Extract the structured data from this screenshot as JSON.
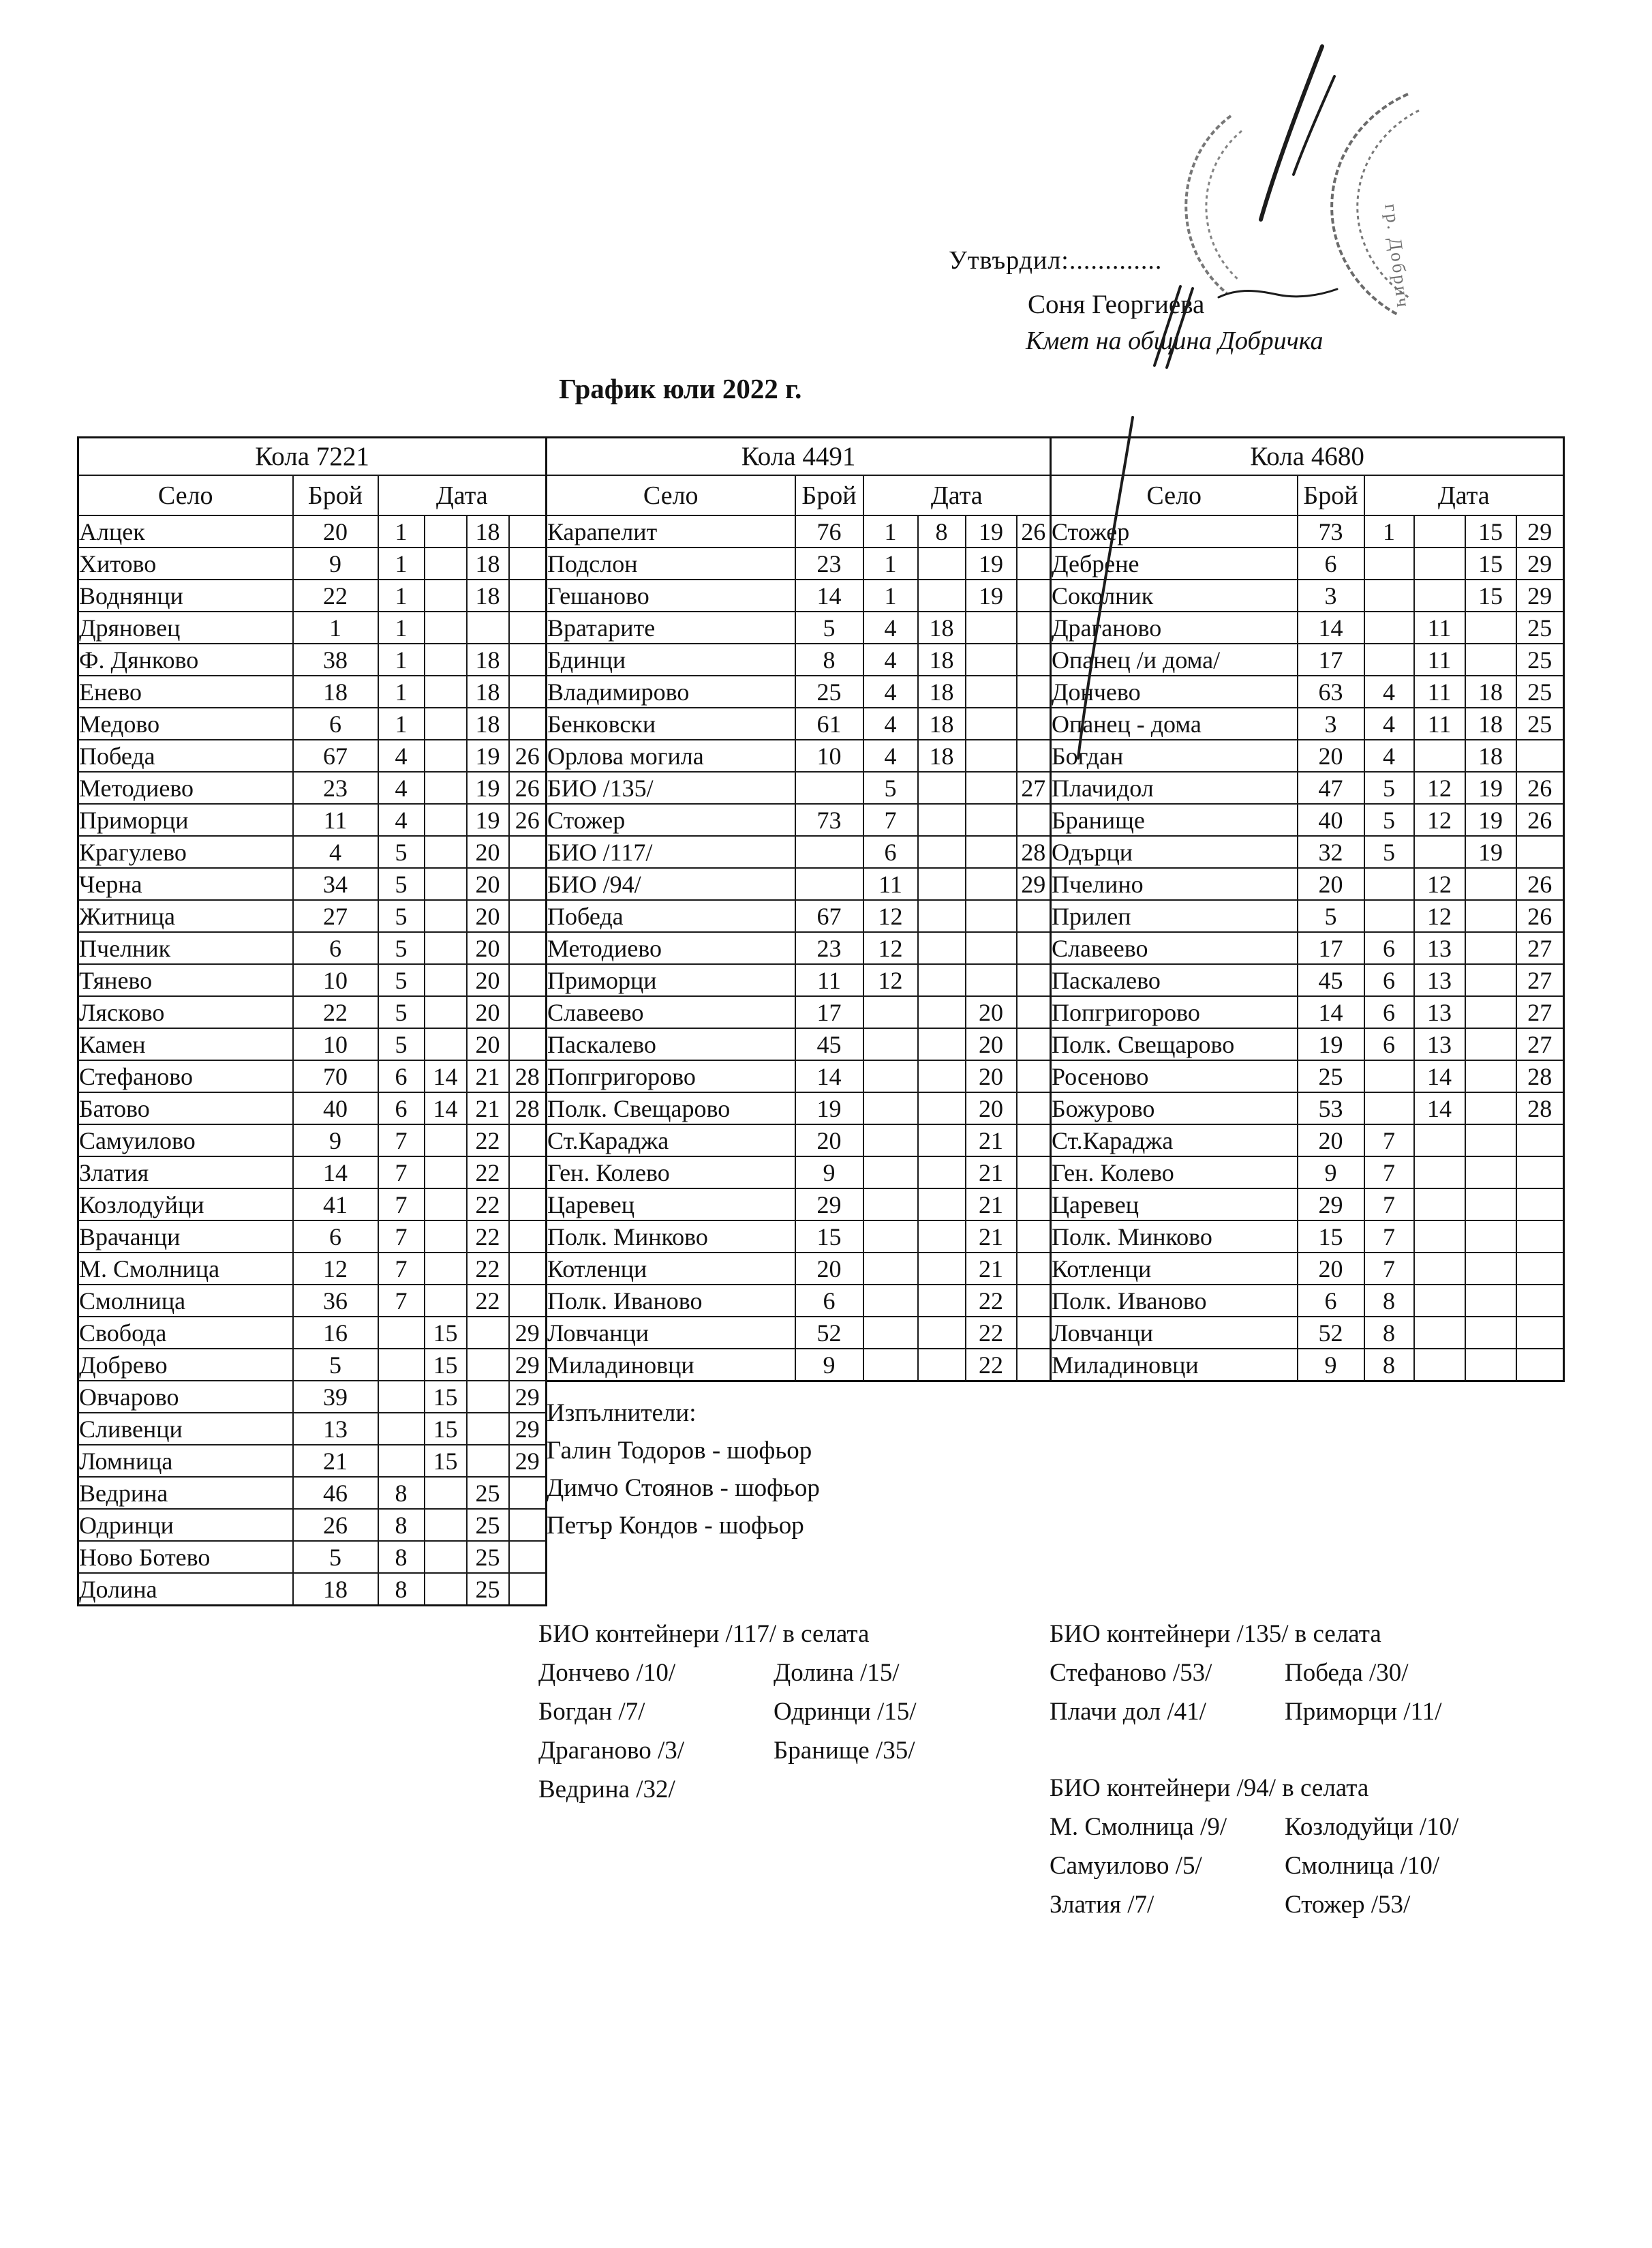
{
  "header": {
    "approved_label": "Утвърдил:.............",
    "approver_name": "Соня Георгиева",
    "approver_title": "Кмет  на община Добричка",
    "title": "График юли 2022 г."
  },
  "columns": {
    "village": "Село",
    "count": "Брой",
    "date": "Дата"
  },
  "stamp": {
    "right_stamp_text": "гр. Добрич"
  },
  "tables": [
    {
      "car": "Кола 7221",
      "rows": [
        {
          "village": "Алцек",
          "count": "20",
          "dates": [
            "1",
            "",
            "18",
            ""
          ]
        },
        {
          "village": "Хитово",
          "count": "9",
          "dates": [
            "1",
            "",
            "18",
            ""
          ]
        },
        {
          "village": "Воднянци",
          "count": "22",
          "dates": [
            "1",
            "",
            "18",
            ""
          ]
        },
        {
          "village": "Дряновец",
          "count": "1",
          "dates": [
            "1",
            "",
            "",
            ""
          ]
        },
        {
          "village": "Ф. Дянково",
          "count": "38",
          "dates": [
            "1",
            "",
            "18",
            ""
          ]
        },
        {
          "village": "Енево",
          "count": "18",
          "dates": [
            "1",
            "",
            "18",
            ""
          ]
        },
        {
          "village": "Медово",
          "count": "6",
          "dates": [
            "1",
            "",
            "18",
            ""
          ]
        },
        {
          "village": "Победа",
          "count": "67",
          "dates": [
            "4",
            "",
            "19",
            "26"
          ]
        },
        {
          "village": "Методиево",
          "count": "23",
          "dates": [
            "4",
            "",
            "19",
            "26"
          ]
        },
        {
          "village": "Приморци",
          "count": "11",
          "dates": [
            "4",
            "",
            "19",
            "26"
          ]
        },
        {
          "village": "Крагулево",
          "count": "4",
          "dates": [
            "5",
            "",
            "20",
            ""
          ]
        },
        {
          "village": "Черна",
          "count": "34",
          "dates": [
            "5",
            "",
            "20",
            ""
          ]
        },
        {
          "village": "Житница",
          "count": "27",
          "dates": [
            "5",
            "",
            "20",
            ""
          ]
        },
        {
          "village": "Пчелник",
          "count": "6",
          "dates": [
            "5",
            "",
            "20",
            ""
          ]
        },
        {
          "village": "Тянево",
          "count": "10",
          "dates": [
            "5",
            "",
            "20",
            ""
          ]
        },
        {
          "village": "Лясково",
          "count": "22",
          "dates": [
            "5",
            "",
            "20",
            ""
          ]
        },
        {
          "village": "Камен",
          "count": "10",
          "dates": [
            "5",
            "",
            "20",
            ""
          ]
        },
        {
          "village": "Стефаново",
          "count": "70",
          "dates": [
            "6",
            "14",
            "21",
            "28"
          ]
        },
        {
          "village": "Батово",
          "count": "40",
          "dates": [
            "6",
            "14",
            "21",
            "28"
          ]
        },
        {
          "village": "Самуилово",
          "count": "9",
          "dates": [
            "7",
            "",
            "22",
            ""
          ]
        },
        {
          "village": "Златия",
          "count": "14",
          "dates": [
            "7",
            "",
            "22",
            ""
          ]
        },
        {
          "village": "Козлодуйци",
          "count": "41",
          "dates": [
            "7",
            "",
            "22",
            ""
          ]
        },
        {
          "village": "Врачанци",
          "count": "6",
          "dates": [
            "7",
            "",
            "22",
            ""
          ]
        },
        {
          "village": "М. Смолница",
          "count": "12",
          "dates": [
            "7",
            "",
            "22",
            ""
          ]
        },
        {
          "village": "Смолница",
          "count": "36",
          "dates": [
            "7",
            "",
            "22",
            ""
          ]
        },
        {
          "village": "Свобода",
          "count": "16",
          "dates": [
            "",
            "15",
            "",
            "29"
          ]
        },
        {
          "village": "Добрево",
          "count": "5",
          "dates": [
            "",
            "15",
            "",
            "29"
          ]
        },
        {
          "village": "Овчарово",
          "count": "39",
          "dates": [
            "",
            "15",
            "",
            "29"
          ]
        },
        {
          "village": "Сливенци",
          "count": "13",
          "dates": [
            "",
            "15",
            "",
            "29"
          ]
        },
        {
          "village": "Ломница",
          "count": "21",
          "dates": [
            "",
            "15",
            "",
            "29"
          ]
        },
        {
          "village": "Ведрина",
          "count": "46",
          "dates": [
            "8",
            "",
            "25",
            ""
          ]
        },
        {
          "village": "Одринци",
          "count": "26",
          "dates": [
            "8",
            "",
            "25",
            ""
          ]
        },
        {
          "village": "Ново Ботево",
          "count": "5",
          "dates": [
            "8",
            "",
            "25",
            ""
          ]
        },
        {
          "village": "Долина",
          "count": "18",
          "dates": [
            "8",
            "",
            "25",
            ""
          ]
        }
      ]
    },
    {
      "car": "Кола 4491",
      "rows": [
        {
          "village": "Карапелит",
          "count": "76",
          "dates": [
            "1",
            "8",
            "19",
            "26"
          ]
        },
        {
          "village": "Подслон",
          "count": "23",
          "dates": [
            "1",
            "",
            "19",
            ""
          ]
        },
        {
          "village": "Гешаново",
          "count": "14",
          "dates": [
            "1",
            "",
            "19",
            ""
          ]
        },
        {
          "village": "Вратарите",
          "count": "5",
          "dates": [
            "4",
            "18",
            "",
            ""
          ]
        },
        {
          "village": "Бдинци",
          "count": "8",
          "dates": [
            "4",
            "18",
            "",
            ""
          ]
        },
        {
          "village": "Владимирово",
          "count": "25",
          "dates": [
            "4",
            "18",
            "",
            ""
          ]
        },
        {
          "village": "Бенковски",
          "count": "61",
          "dates": [
            "4",
            "18",
            "",
            ""
          ]
        },
        {
          "village": "Орлова могила",
          "count": "10",
          "dates": [
            "4",
            "18",
            "",
            ""
          ]
        },
        {
          "village": "БИО /135/",
          "count": "",
          "dates": [
            "5",
            "",
            "",
            "27"
          ]
        },
        {
          "village": "Стожер",
          "count": "73",
          "dates": [
            "7",
            "",
            "",
            ""
          ]
        },
        {
          "village": "БИО /117/",
          "count": "",
          "dates": [
            "6",
            "",
            "",
            "28"
          ]
        },
        {
          "village": "БИО /94/",
          "count": "",
          "dates": [
            "11",
            "",
            "",
            "29"
          ]
        },
        {
          "village": "Победа",
          "count": "67",
          "dates": [
            "12",
            "",
            "",
            ""
          ]
        },
        {
          "village": "Методиево",
          "count": "23",
          "dates": [
            "12",
            "",
            "",
            ""
          ]
        },
        {
          "village": "Приморци",
          "count": "11",
          "dates": [
            "12",
            "",
            "",
            ""
          ]
        },
        {
          "village": "Славеево",
          "count": "17",
          "dates": [
            "",
            "",
            "20",
            ""
          ]
        },
        {
          "village": "Паскалево",
          "count": "45",
          "dates": [
            "",
            "",
            "20",
            ""
          ]
        },
        {
          "village": "Попгригорово",
          "count": "14",
          "dates": [
            "",
            "",
            "20",
            ""
          ]
        },
        {
          "village": "Полк. Свещарово",
          "count": "19",
          "dates": [
            "",
            "",
            "20",
            ""
          ]
        },
        {
          "village": "Ст.Караджа",
          "count": "20",
          "dates": [
            "",
            "",
            "21",
            ""
          ]
        },
        {
          "village": "Ген. Колево",
          "count": "9",
          "dates": [
            "",
            "",
            "21",
            ""
          ]
        },
        {
          "village": "Царевец",
          "count": "29",
          "dates": [
            "",
            "",
            "21",
            ""
          ]
        },
        {
          "village": "Полк. Минково",
          "count": "15",
          "dates": [
            "",
            "",
            "21",
            ""
          ]
        },
        {
          "village": "Котленци",
          "count": "20",
          "dates": [
            "",
            "",
            "21",
            ""
          ]
        },
        {
          "village": "Полк. Иваново",
          "count": "6",
          "dates": [
            "",
            "",
            "22",
            ""
          ]
        },
        {
          "village": "Ловчанци",
          "count": "52",
          "dates": [
            "",
            "",
            "22",
            ""
          ]
        },
        {
          "village": "Миладиновци",
          "count": "9",
          "dates": [
            "",
            "",
            "22",
            ""
          ]
        }
      ]
    },
    {
      "car": "Кола 4680",
      "rows": [
        {
          "village": "Стожер",
          "count": "73",
          "dates": [
            "1",
            "",
            "15",
            "29"
          ]
        },
        {
          "village": "Дебрене",
          "count": "6",
          "dates": [
            "",
            "",
            "15",
            "29"
          ]
        },
        {
          "village": "Соколник",
          "count": "3",
          "dates": [
            "",
            "",
            "15",
            "29"
          ]
        },
        {
          "village": "Драганово",
          "count": "14",
          "dates": [
            "",
            "11",
            "",
            "25"
          ]
        },
        {
          "village": "Опанец /и дома/",
          "count": "17",
          "dates": [
            "",
            "11",
            "",
            "25"
          ]
        },
        {
          "village": "Дончево",
          "count": "63",
          "dates": [
            "4",
            "11",
            "18",
            "25"
          ]
        },
        {
          "village": "Опанец - дома",
          "count": "3",
          "dates": [
            "4",
            "11",
            "18",
            "25"
          ]
        },
        {
          "village": "Богдан",
          "count": "20",
          "dates": [
            "4",
            "",
            "18",
            ""
          ]
        },
        {
          "village": "Плачидол",
          "count": "47",
          "dates": [
            "5",
            "12",
            "19",
            "26"
          ]
        },
        {
          "village": "Бранище",
          "count": "40",
          "dates": [
            "5",
            "12",
            "19",
            "26"
          ]
        },
        {
          "village": "Одърци",
          "count": "32",
          "dates": [
            "5",
            "",
            "19",
            ""
          ]
        },
        {
          "village": "Пчелино",
          "count": "20",
          "dates": [
            "",
            "12",
            "",
            "26"
          ]
        },
        {
          "village": "Прилеп",
          "count": "5",
          "dates": [
            "",
            "12",
            "",
            "26"
          ]
        },
        {
          "village": "Славеево",
          "count": "17",
          "dates": [
            "6",
            "13",
            "",
            "27"
          ]
        },
        {
          "village": "Паскалево",
          "count": "45",
          "dates": [
            "6",
            "13",
            "",
            "27"
          ]
        },
        {
          "village": "Попгригорово",
          "count": "14",
          "dates": [
            "6",
            "13",
            "",
            "27"
          ]
        },
        {
          "village": "Полк. Свещарово",
          "count": "19",
          "dates": [
            "6",
            "13",
            "",
            "27"
          ]
        },
        {
          "village": "Росеново",
          "count": "25",
          "dates": [
            "",
            "14",
            "",
            "28"
          ]
        },
        {
          "village": "Божурово",
          "count": "53",
          "dates": [
            "",
            "14",
            "",
            "28"
          ]
        },
        {
          "village": "Ст.Караджа",
          "count": "20",
          "dates": [
            "7",
            "",
            "",
            ""
          ]
        },
        {
          "village": "Ген. Колево",
          "count": "9",
          "dates": [
            "7",
            "",
            "",
            ""
          ]
        },
        {
          "village": "Царевец",
          "count": "29",
          "dates": [
            "7",
            "",
            "",
            ""
          ]
        },
        {
          "village": "Полк. Минково",
          "count": "15",
          "dates": [
            "7",
            "",
            "",
            ""
          ]
        },
        {
          "village": "Котленци",
          "count": "20",
          "dates": [
            "7",
            "",
            "",
            ""
          ]
        },
        {
          "village": "Полк. Иваново",
          "count": "6",
          "dates": [
            "8",
            "",
            "",
            ""
          ]
        },
        {
          "village": "Ловчанци",
          "count": "52",
          "dates": [
            "8",
            "",
            "",
            ""
          ]
        },
        {
          "village": "Миладиновци",
          "count": "9",
          "dates": [
            "8",
            "",
            "",
            ""
          ]
        }
      ]
    }
  ],
  "executors": {
    "title": "Изпълнители:",
    "names": [
      "Галин Тодоров - шофьор",
      "Димчо Стоянов - шофьор",
      "Петър Кондов - шофьор"
    ]
  },
  "bio_sections": [
    {
      "title": "БИО контейнери /117/ в селата",
      "pairs": [
        [
          "Дончево /10/",
          "Долина /15/"
        ],
        [
          "Богдан /7/",
          "Одринци /15/"
        ],
        [
          "Драганово /3/",
          "Бранище /35/"
        ],
        [
          "Ведрина /32/",
          ""
        ]
      ]
    },
    {
      "title": "БИО контейнери /135/ в селата",
      "pairs": [
        [
          "Стефаново /53/",
          "Победа /30/"
        ],
        [
          "Плачи дол /41/",
          "Приморци /11/"
        ]
      ]
    },
    {
      "title": "БИО контейнери /94/ в селата",
      "pairs": [
        [
          "М. Смолница /9/",
          "Козлодуйци /10/"
        ],
        [
          "Самуилово /5/",
          "Смолница /10/"
        ],
        [
          "Златия /7/",
          "Стожер /53/"
        ]
      ]
    }
  ]
}
